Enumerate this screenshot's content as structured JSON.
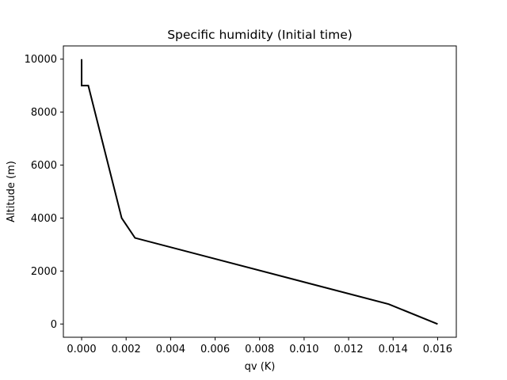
{
  "chart_data": {
    "type": "line",
    "title": "Specific humidity (Initial time)",
    "xlabel": "qv (K)",
    "ylabel": "Altitude (m)",
    "xlim": [
      -0.00082,
      0.01684
    ],
    "ylim": [
      -500,
      10500
    ],
    "xticks": [
      0.0,
      0.002,
      0.004,
      0.006,
      0.008,
      0.01,
      0.012,
      0.014,
      0.016
    ],
    "xtick_labels": [
      "0.000",
      "0.002",
      "0.004",
      "0.006",
      "0.008",
      "0.010",
      "0.012",
      "0.014",
      "0.016"
    ],
    "yticks": [
      0,
      2000,
      4000,
      6000,
      8000,
      10000
    ],
    "ytick_labels": [
      "0",
      "2000",
      "4000",
      "6000",
      "8000",
      "10000"
    ],
    "grid": false,
    "series": [
      {
        "color": "#000000",
        "x": [
          0.016,
          0.0138,
          0.0024,
          0.0018,
          0.0003,
          0.0,
          0.0
        ],
        "y": [
          0,
          750,
          3250,
          4000,
          9000,
          9000,
          10000
        ]
      }
    ]
  }
}
